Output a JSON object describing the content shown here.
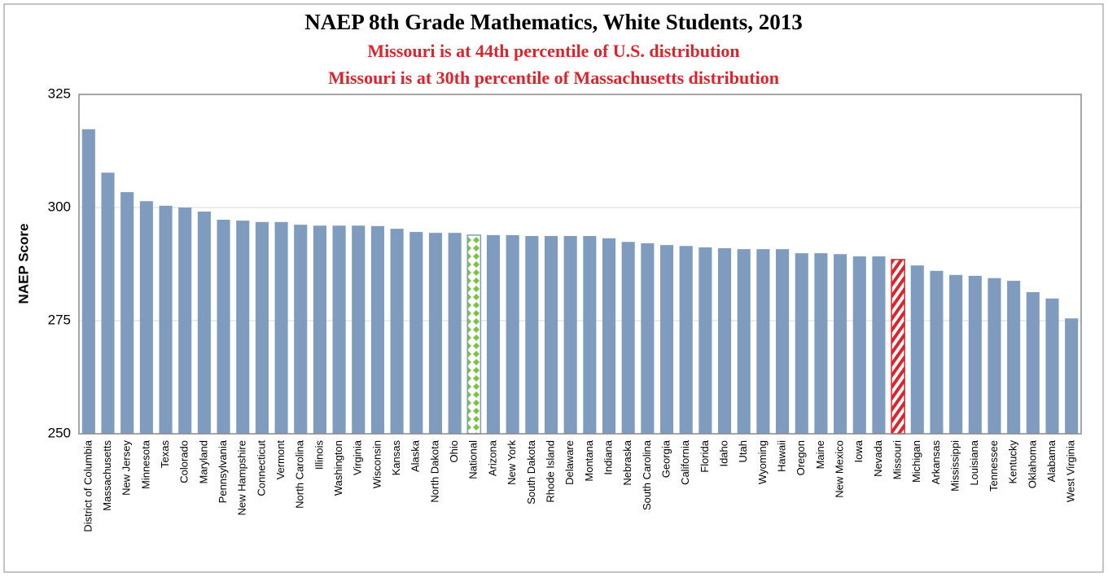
{
  "chart_data": {
    "type": "bar",
    "title": "NAEP 8th Grade Mathematics, White Students, 2013",
    "subtitles": [
      "Missouri is at 44th percentile of U.S. distribution",
      "Missouri is at 30th percentile of Massachusetts distribution"
    ],
    "y_label": "NAEP Score",
    "categories": [
      "District of Columbia",
      "Massachusetts",
      "New Jersey",
      "Minnesota",
      "Texas",
      "Colorado",
      "Maryland",
      "Pennsylvania",
      "New Hampshire",
      "Connecticut",
      "Vermont",
      "North Carolina",
      "Illinois",
      "Washington",
      "Virginia",
      "Wisconsin",
      "Kansas",
      "Alaska",
      "North Dakota",
      "Ohio",
      "National",
      "Arizona",
      "New York",
      "South Dakota",
      "Rhode Island",
      "Delaware",
      "Montana",
      "Indiana",
      "Nebraska",
      "South Carolina",
      "Georgia",
      "California",
      "Florida",
      "Idaho",
      "Utah",
      "Wyoming",
      "Hawaii",
      "Oregon",
      "Maine",
      "New Mexico",
      "Iowa",
      "Nevada",
      "Missouri",
      "Michigan",
      "Arkansas",
      "Mississippi",
      "Louisiana",
      "Tennessee",
      "Kentucky",
      "Oklahoma",
      "Alabama",
      "West Virginia"
    ],
    "values": [
      317.3,
      307.7,
      303.4,
      301.4,
      300.4,
      300.0,
      299.1,
      297.3,
      297.1,
      296.8,
      296.8,
      296.2,
      296.0,
      296.0,
      296.0,
      295.9,
      295.3,
      294.6,
      294.4,
      294.4,
      293.9,
      293.9,
      293.9,
      293.7,
      293.7,
      293.7,
      293.7,
      293.2,
      292.4,
      292.1,
      291.7,
      291.5,
      291.2,
      291.0,
      290.8,
      290.8,
      290.8,
      289.9,
      289.9,
      289.7,
      289.2,
      289.2,
      288.5,
      287.2,
      286.0,
      285.1,
      284.9,
      284.4,
      283.8,
      281.3,
      279.9,
      275.5
    ],
    "color": "#7f9bbd",
    "highlights": [
      {
        "index": 20,
        "color": "#7cc243",
        "pattern": "diamond"
      },
      {
        "index": 42,
        "color": "#d9262e",
        "pattern": "stripe"
      }
    ],
    "ylim": [
      250,
      325
    ],
    "yticks": [
      250,
      275,
      300,
      325
    ],
    "grid": true
  }
}
